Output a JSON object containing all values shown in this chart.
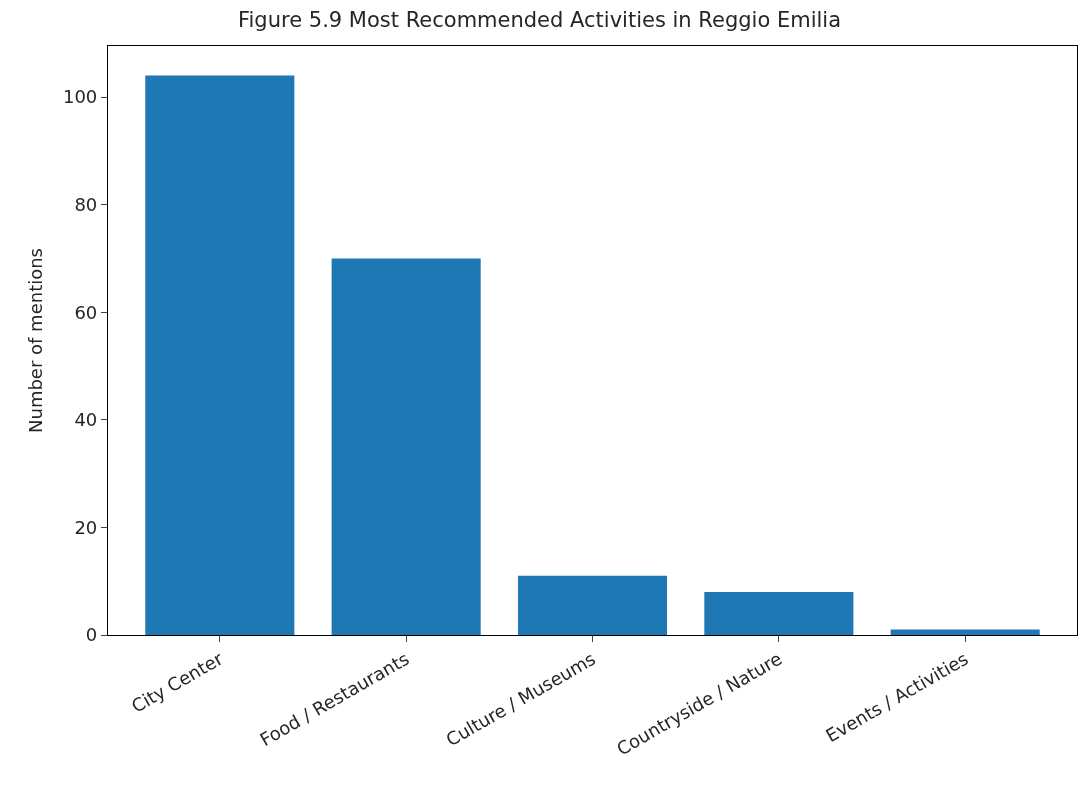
{
  "chart_data": {
    "type": "bar",
    "title": "Figure 5.9 Most Recommended Activities in Reggio Emilia",
    "ylabel": "Number of mentions",
    "categories": [
      "City Center",
      "Food / Restaurants",
      "Culture / Museums",
      "Countryside / Nature",
      "Events / Activities"
    ],
    "values": [
      104,
      70,
      11,
      8,
      1
    ],
    "color": "#1f77b4",
    "ylim": [
      0,
      109.5
    ],
    "yticks": [
      0,
      20,
      40,
      60,
      80,
      100
    ]
  }
}
